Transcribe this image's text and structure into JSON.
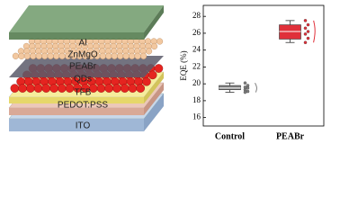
{
  "diagram": {
    "layers": [
      "Al",
      "ZnMgO",
      "PEABr",
      "QDs",
      "TFB",
      "PEDOT:PSS",
      "ITO"
    ]
  },
  "chart_data": {
    "type": "box",
    "ylabel": "EQE (%)",
    "categories": [
      "Control",
      "PEABr"
    ],
    "ylim": [
      15,
      29.3
    ],
    "yticks": [
      16,
      18,
      20,
      22,
      24,
      26,
      28
    ],
    "boxes": [
      {
        "color": "#7f7f7f",
        "whislo": 19.0,
        "q1": 19.3,
        "med": 19.5,
        "q3": 19.8,
        "whishi": 20.1,
        "points": [
          20.1,
          19.8,
          19.6,
          19.5,
          19.3,
          19.1,
          19.0
        ]
      },
      {
        "color": "#e0303a",
        "whislo": 24.9,
        "q1": 25.3,
        "med": 26.2,
        "q3": 27.0,
        "whishi": 27.5,
        "points": [
          27.5,
          27.0,
          26.6,
          26.2,
          25.9,
          25.4,
          24.9
        ]
      }
    ]
  }
}
